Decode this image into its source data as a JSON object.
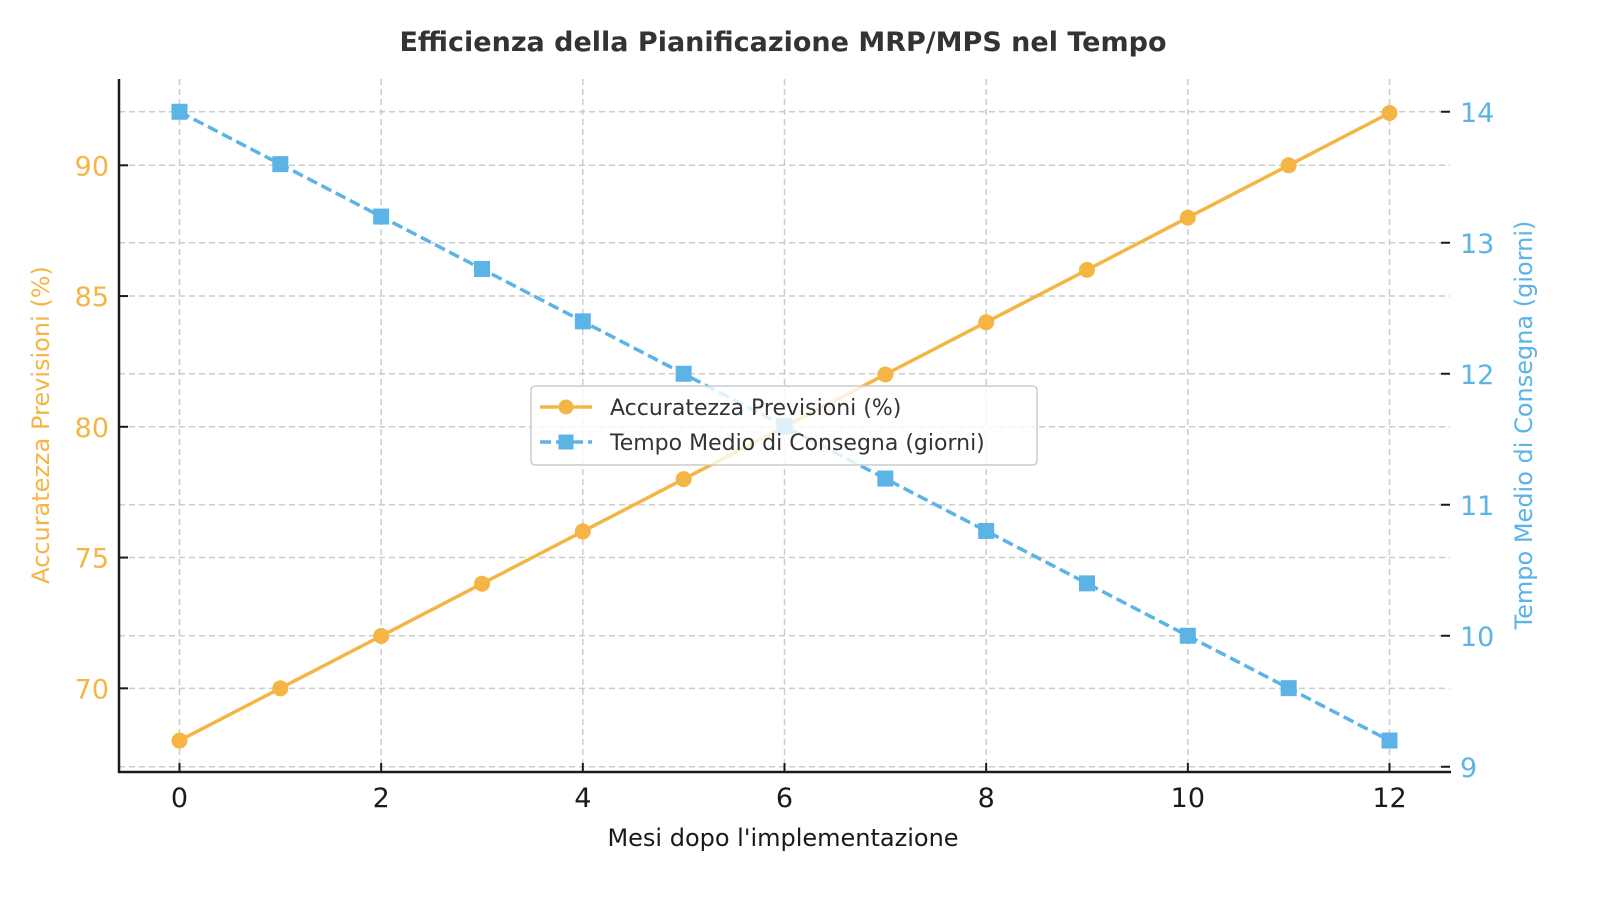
{
  "chart_data": {
    "type": "line",
    "title": "Efficienza della Pianificazione MRP/MPS nel Tempo",
    "xlabel": "Mesi dopo l'implementazione",
    "ylabel_left": "Accuratezza Previsioni (%)",
    "ylabel_right": "Tempo Medio di Consegna (giorni)",
    "x": [
      0,
      1,
      2,
      3,
      4,
      5,
      6,
      7,
      8,
      9,
      10,
      11,
      12
    ],
    "xlim": [
      -0.6,
      12.6
    ],
    "xticks": [
      0,
      2,
      4,
      6,
      8,
      10,
      12
    ],
    "xtick_labels": [
      "0",
      "2",
      "4",
      "6",
      "8",
      "10",
      "12"
    ],
    "ylim_left": [
      66.8,
      93.3
    ],
    "yticks_left": [
      70,
      75,
      80,
      85,
      90
    ],
    "ytick_labels_left": [
      "70",
      "75",
      "80",
      "85",
      "90"
    ],
    "ylim_right": [
      8.96,
      14.25
    ],
    "yticks_right": [
      9,
      10,
      11,
      12,
      13,
      14
    ],
    "ytick_labels_right": [
      "9",
      "10",
      "11",
      "12",
      "13",
      "14"
    ],
    "grid": true,
    "legend_position": "center",
    "series": [
      {
        "name": "Accuratezza Previsioni (%)",
        "axis": "left",
        "color": "#F5B544",
        "line_style": "solid",
        "marker": "circle",
        "values": [
          68,
          70,
          72,
          74,
          76,
          78,
          80,
          82,
          84,
          86,
          88,
          90,
          92
        ]
      },
      {
        "name": "Tempo Medio di Consegna (giorni)",
        "axis": "right",
        "color": "#5BB4E5",
        "line_style": "dashed",
        "marker": "square",
        "values": [
          14.0,
          13.6,
          13.2,
          12.8,
          12.4,
          12.0,
          11.6,
          11.2,
          10.8,
          10.4,
          10.0,
          9.6,
          9.2
        ]
      }
    ]
  }
}
